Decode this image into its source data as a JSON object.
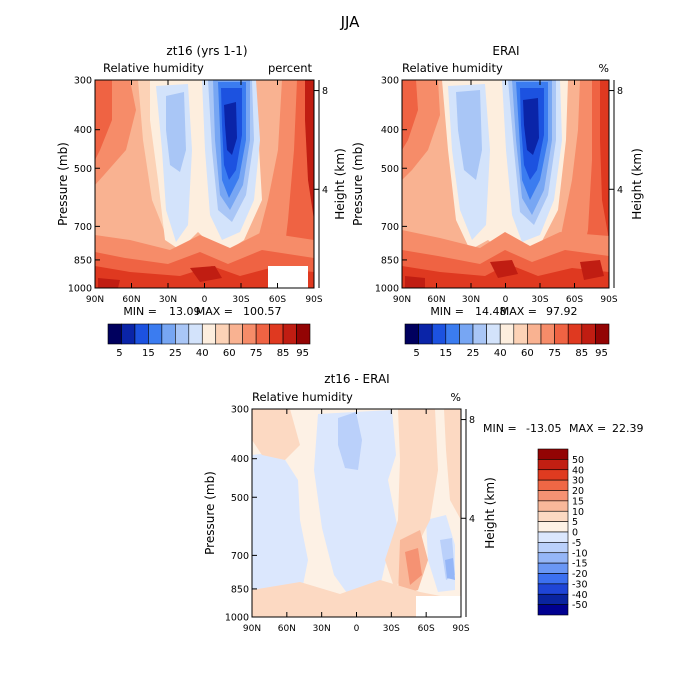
{
  "figure": {
    "season": "JJA"
  },
  "colors": {
    "rh_levels": [
      "#00005e",
      "#0a24a8",
      "#1c52e0",
      "#3b7cf0",
      "#77a6f3",
      "#a9c6f6",
      "#d3e3fb",
      "#fdeede",
      "#fcd2b6",
      "#f9b291",
      "#f68c69",
      "#ef6343",
      "#df3920",
      "#c01d12",
      "#930404"
    ],
    "diff_levels": [
      "#000090",
      "#0a249f",
      "#1f45d6",
      "#3c70f0",
      "#6a97f5",
      "#95b6f7",
      "#bad0fa",
      "#dbe7fd",
      "#fdf1e5",
      "#fcd9c2",
      "#f9b89a",
      "#f59273",
      "#ef6745",
      "#df3b20",
      "#c21f12",
      "#930404"
    ]
  },
  "chart_data": [
    {
      "type": "heatmap",
      "panel": "top-left",
      "title": "zt16 (yrs 1-1)",
      "subtitle_left": "Relative humidity",
      "subtitle_right": "percent",
      "xlabel": "",
      "ylabel": "Pressure (mb)",
      "ylabel_right": "Height (km)",
      "x_ticks": [
        "90N",
        "60N",
        "30N",
        "0",
        "30S",
        "60S",
        "90S"
      ],
      "x_range": [
        90,
        -90
      ],
      "y_ticks": [
        "300",
        "400",
        "500",
        "700",
        "850",
        "1000"
      ],
      "y_range": [
        300,
        1000
      ],
      "y_right_ticks": [
        "8",
        "4"
      ],
      "stats": {
        "min_label": "MIN =",
        "min": "13.09",
        "max_label": "MAX =",
        "max": "100.57"
      },
      "colorbar_labels": [
        "5",
        "15",
        "25",
        "40",
        "60",
        "75",
        "85",
        "95"
      ],
      "colorbar_orientation": "horizontal",
      "missing_region": "lower-right white box"
    },
    {
      "type": "heatmap",
      "panel": "top-right",
      "title": "ERAI",
      "subtitle_left": "Relative humidity",
      "subtitle_right": "%",
      "xlabel": "",
      "ylabel": "Pressure (mb)",
      "ylabel_right": "Height (km)",
      "x_ticks": [
        "90N",
        "60N",
        "30N",
        "0",
        "30S",
        "60S",
        "90S"
      ],
      "x_range": [
        90,
        -90
      ],
      "y_ticks": [
        "300",
        "400",
        "500",
        "700",
        "850",
        "1000"
      ],
      "y_range": [
        300,
        1000
      ],
      "y_right_ticks": [
        "8",
        "4"
      ],
      "stats": {
        "min_label": "MIN =",
        "min": "14.48",
        "max_label": "MAX =",
        "max": "97.92"
      },
      "colorbar_labels": [
        "5",
        "15",
        "25",
        "40",
        "60",
        "75",
        "85",
        "95"
      ],
      "colorbar_orientation": "horizontal"
    },
    {
      "type": "heatmap",
      "panel": "bottom",
      "title": "zt16 - ERAI",
      "subtitle_left": "Relative humidity",
      "subtitle_right": "%",
      "xlabel": "",
      "ylabel": "Pressure (mb)",
      "ylabel_right": "Height (km)",
      "x_ticks": [
        "90N",
        "60N",
        "30N",
        "0",
        "30S",
        "60S",
        "90S"
      ],
      "x_range": [
        90,
        -90
      ],
      "y_ticks": [
        "300",
        "400",
        "500",
        "700",
        "850",
        "1000"
      ],
      "y_range": [
        300,
        1000
      ],
      "y_right_ticks": [
        "8",
        "4"
      ],
      "stats": {
        "min_label": "MIN =",
        "min": "-13.05",
        "max_label": "MAX =",
        "max": "22.39"
      },
      "colorbar_labels": [
        "50",
        "40",
        "30",
        "20",
        "15",
        "10",
        "5",
        "0",
        "-5",
        "-10",
        "-15",
        "-20",
        "-30",
        "-40",
        "-50"
      ],
      "colorbar_orientation": "vertical",
      "missing_region": "lower-right white box"
    }
  ]
}
